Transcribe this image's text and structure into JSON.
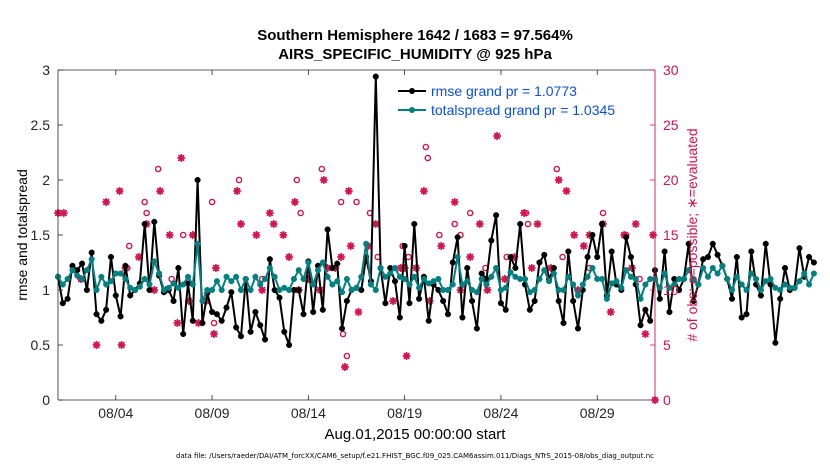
{
  "chart_data": {
    "type": "line",
    "title_line1": "Southern Hemisphere 1642 / 1683 = 97.564%",
    "title_line2": "AIRS_SPECIFIC_HUMIDITY @ 925 hPa",
    "xlabel": "Aug.01,2015 00:00:00 start",
    "ylabel_left": "rmse and totalspread",
    "ylabel_right": "# of obs: o=possible; ∗=evaluated",
    "footer": "data file: /Users/raeder/DAI/ATM_forcXX/CAM6_setup/f.e21.FHIST_BGC.f09_025.CAM6assim.011/Diags_NTrS_2015-08/obs_diag_output.nc",
    "xlim": [
      1,
      32
    ],
    "ylim_left": [
      0,
      3
    ],
    "ylim_right": [
      0,
      30
    ],
    "x_ticks": [
      {
        "day": 4,
        "label": "08/04"
      },
      {
        "day": 9,
        "label": "08/09"
      },
      {
        "day": 14,
        "label": "08/14"
      },
      {
        "day": 19,
        "label": "08/19"
      },
      {
        "day": 24,
        "label": "08/24"
      },
      {
        "day": 29,
        "label": "08/29"
      }
    ],
    "y_left_ticks": [
      "0",
      "0.5",
      "1",
      "1.5",
      "2",
      "2.5",
      "3"
    ],
    "y_right_ticks": [
      "0",
      "5",
      "10",
      "15",
      "20",
      "25",
      "30"
    ],
    "colors": {
      "rmse": "#000000",
      "spread": "#00807f",
      "obs": "#d6134f",
      "legend_text": "#0a4fe0"
    },
    "series": [
      {
        "name": "rmse grand pr = 1.0773",
        "start": 1.0,
        "step": 0.25,
        "values": [
          1.12,
          0.88,
          0.92,
          1.22,
          1.18,
          1.24,
          1.0,
          1.34,
          0.78,
          0.72,
          0.82,
          1.3,
          0.95,
          0.76,
          1.22,
          0.95,
          1.0,
          1.06,
          1.6,
          1.0,
          1.62,
          1.13,
          0.98,
          1.0,
          0.9,
          1.2,
          0.6,
          1.06,
          0.72,
          2.0,
          0.7,
          0.97,
          0.8,
          0.78,
          0.72,
          0.84,
          0.98,
          0.66,
          0.58,
          1.1,
          0.62,
          0.8,
          0.68,
          0.55,
          1.28,
          1.0,
          0.93,
          0.62,
          0.5,
          1.0,
          1.0,
          0.78,
          1.26,
          0.8,
          1.22,
          0.82,
          1.55,
          1.2,
          1.24,
          0.65,
          0.9,
          1.0,
          1.02,
          1.0,
          1.3,
          1.08,
          2.94,
          1.2,
          0.88,
          1.2,
          1.08,
          0.75,
          1.4,
          0.88,
          1.6,
          0.92,
          1.12,
          0.72,
          1.05,
          1.0,
          0.9,
          0.78,
          1.25,
          1.48,
          0.75,
          1.2,
          0.9,
          0.65,
          1.15,
          1.1,
          1.45,
          1.68,
          0.88,
          0.82,
          1.3,
          1.2,
          1.6,
          1.05,
          0.82,
          0.9,
          1.25,
          1.32,
          1.1,
          1.2,
          0.9,
          0.7,
          1.35,
          0.9,
          0.65,
          1.0,
          1.3,
          1.5,
          1.3,
          1.6,
          0.95,
          1.35,
          1.05,
          1.0,
          1.48,
          1.3,
          1.05,
          0.68,
          0.82,
          0.72,
          1.18,
          0.92,
          1.35,
          0.8,
          1.1,
          1.0,
          1.1,
          1.42,
          0.9,
          1.05,
          1.28,
          1.3,
          1.42,
          1.32,
          1.22,
          1.1,
          0.92,
          1.3,
          0.75,
          0.78,
          1.35,
          1.05,
          0.95,
          1.42,
          1.05,
          0.52,
          0.92,
          1.2,
          1.0,
          1.02,
          1.38,
          1.12,
          1.3,
          1.25
        ]
      },
      {
        "name": "totalspread grand pr = 1.0345",
        "start": 1.0,
        "step": 0.25,
        "values": [
          1.12,
          1.05,
          1.1,
          1.18,
          1.13,
          1.1,
          1.18,
          1.28,
          1.0,
          1.12,
          1.05,
          1.08,
          1.15,
          1.15,
          1.1,
          1.02,
          1.0,
          1.03,
          1.1,
          1.05,
          1.26,
          1.15,
          1.0,
          1.02,
          1.06,
          1.02,
          1.05,
          1.12,
          1.05,
          1.42,
          0.9,
          1.0,
          1.0,
          1.08,
          1.0,
          1.12,
          1.08,
          1.12,
          1.0,
          1.1,
          1.0,
          1.12,
          1.05,
          1.1,
          1.2,
          1.12,
          1.0,
          1.02,
          1.0,
          1.1,
          1.18,
          1.1,
          1.25,
          1.05,
          1.18,
          1.25,
          1.12,
          1.05,
          1.08,
          0.98,
          1.1,
          1.0,
          1.02,
          1.12,
          1.42,
          1.05,
          1.0,
          1.2,
          1.12,
          1.15,
          1.2,
          1.12,
          1.1,
          1.05,
          1.12,
          1.02,
          1.1,
          1.06,
          1.08,
          1.1,
          1.0,
          1.0,
          1.05,
          1.3,
          1.05,
          1.08,
          1.0,
          0.98,
          1.1,
          1.05,
          1.12,
          1.2,
          1.0,
          1.02,
          1.16,
          1.12,
          1.1,
          1.1,
          0.98,
          1.0,
          1.1,
          1.18,
          1.08,
          1.15,
          1.0,
          1.0,
          1.12,
          1.05,
          0.95,
          1.05,
          1.12,
          1.2,
          1.1,
          1.1,
          0.92,
          1.06,
          1.08,
          1.02,
          1.18,
          1.12,
          1.1,
          0.92,
          1.05,
          1.1,
          1.1,
          1.02,
          1.15,
          1.02,
          1.05,
          1.1,
          1.1,
          1.18,
          1.1,
          1.05,
          1.2,
          1.12,
          1.2,
          1.15,
          1.22,
          1.1,
          1.0,
          1.12,
          1.05,
          1.0,
          1.15,
          1.1,
          1.0,
          1.08,
          1.1,
          1.02,
          1.0,
          1.05,
          1.02,
          1.02,
          1.08,
          1.15,
          1.05,
          1.15
        ]
      }
    ],
    "obs_possible": {
      "marker": "circle",
      "points": [
        [
          1.1,
          17
        ],
        [
          2.2,
          11
        ],
        [
          4.6,
          12
        ],
        [
          4.7,
          14
        ],
        [
          5.5,
          18
        ],
        [
          5.6,
          17
        ],
        [
          6.2,
          21
        ],
        [
          6.9,
          11
        ],
        [
          7.5,
          15
        ],
        [
          9.0,
          18
        ],
        [
          9.1,
          7
        ],
        [
          10.4,
          20
        ],
        [
          11.6,
          11
        ],
        [
          13.4,
          20
        ],
        [
          13.6,
          17
        ],
        [
          14.7,
          21
        ],
        [
          15.7,
          18
        ],
        [
          15.8,
          6
        ],
        [
          16.0,
          4
        ],
        [
          16.5,
          18
        ],
        [
          17.2,
          17
        ],
        [
          17.6,
          13
        ],
        [
          18.9,
          14
        ],
        [
          19.2,
          13
        ],
        [
          20.1,
          23
        ],
        [
          20.2,
          22
        ],
        [
          20.8,
          15
        ],
        [
          21.6,
          16
        ],
        [
          21.9,
          15
        ],
        [
          22.4,
          17
        ],
        [
          23.2,
          12
        ],
        [
          24.3,
          13
        ],
        [
          25.3,
          17
        ],
        [
          25.4,
          16
        ],
        [
          26.9,
          21
        ],
        [
          27.2,
          13
        ],
        [
          28.6,
          12
        ],
        [
          29.3,
          17
        ],
        [
          30.5,
          15
        ],
        [
          31.2,
          11
        ]
      ]
    },
    "obs_evaluated": {
      "marker": "asterisk",
      "points": [
        [
          1.0,
          17
        ],
        [
          1.3,
          17
        ],
        [
          2.2,
          11
        ],
        [
          3.0,
          5
        ],
        [
          3.5,
          18
        ],
        [
          4.2,
          19
        ],
        [
          4.3,
          5
        ],
        [
          4.5,
          12
        ],
        [
          5.2,
          13
        ],
        [
          5.6,
          16
        ],
        [
          6.0,
          10
        ],
        [
          6.3,
          19
        ],
        [
          6.6,
          10
        ],
        [
          6.8,
          15
        ],
        [
          7.2,
          7
        ],
        [
          7.4,
          22
        ],
        [
          7.8,
          9
        ],
        [
          8.0,
          15
        ],
        [
          8.3,
          7
        ],
        [
          8.7,
          9
        ],
        [
          9.1,
          6
        ],
        [
          9.2,
          12
        ],
        [
          10.3,
          19
        ],
        [
          10.5,
          16
        ],
        [
          11.3,
          15
        ],
        [
          11.6,
          10
        ],
        [
          12.0,
          17
        ],
        [
          12.2,
          16
        ],
        [
          12.7,
          15
        ],
        [
          13.0,
          13
        ],
        [
          13.3,
          18
        ],
        [
          13.5,
          10
        ],
        [
          14.0,
          11
        ],
        [
          14.6,
          10
        ],
        [
          14.8,
          20
        ],
        [
          15.0,
          12
        ],
        [
          15.4,
          12
        ],
        [
          15.7,
          13
        ],
        [
          15.9,
          3
        ],
        [
          16.1,
          19
        ],
        [
          16.2,
          14
        ],
        [
          16.6,
          8
        ],
        [
          17.1,
          14
        ],
        [
          17.5,
          16
        ],
        [
          18.4,
          9
        ],
        [
          18.8,
          12
        ],
        [
          19.0,
          12
        ],
        [
          19.1,
          4
        ],
        [
          19.6,
          12
        ],
        [
          20.0,
          19
        ],
        [
          20.3,
          9
        ],
        [
          20.9,
          14
        ],
        [
          21.6,
          18
        ],
        [
          21.9,
          10
        ],
        [
          22.4,
          13
        ],
        [
          22.9,
          16
        ],
        [
          23.3,
          10
        ],
        [
          23.8,
          24
        ],
        [
          24.2,
          11
        ],
        [
          24.7,
          13
        ],
        [
          25.2,
          17
        ],
        [
          25.6,
          12
        ],
        [
          25.9,
          16
        ],
        [
          26.6,
          12
        ],
        [
          27.0,
          20
        ],
        [
          27.4,
          19
        ],
        [
          27.8,
          15
        ],
        [
          28.0,
          10
        ],
        [
          28.3,
          14
        ],
        [
          28.6,
          15
        ],
        [
          29.3,
          16
        ],
        [
          29.7,
          8
        ],
        [
          30.4,
          15
        ],
        [
          30.8,
          12
        ],
        [
          31.0,
          16
        ],
        [
          31.5,
          6
        ],
        [
          31.9,
          15
        ],
        [
          32.0,
          0
        ]
      ]
    }
  }
}
